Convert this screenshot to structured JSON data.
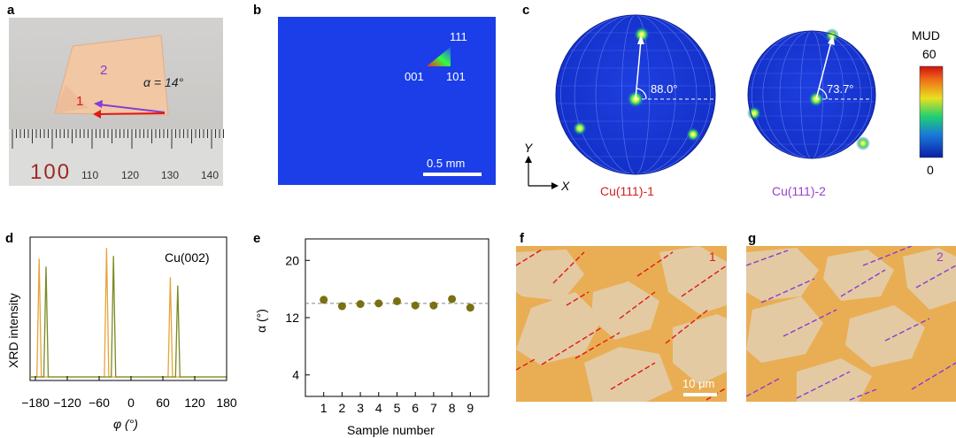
{
  "panels": {
    "a": {
      "letter": "a",
      "label1": "1",
      "label2": "2",
      "alpha_label": "α = 14°",
      "ruler_numbers": [
        "100",
        "110",
        "120",
        "130",
        "140"
      ]
    },
    "b": {
      "letter": "b",
      "ipf_labels": {
        "top": "111",
        "left": "001",
        "right": "101"
      },
      "scalebar": "0.5 mm"
    },
    "c": {
      "letter": "c",
      "poles": [
        {
          "name": "Cu(111)-1",
          "angle": "88.0°",
          "color": "#d42020"
        },
        {
          "name": "Cu(111)-2",
          "angle": "73.7°",
          "color": "#9b3fd0"
        }
      ],
      "axis_y": "Y",
      "axis_x": "X",
      "colorbar": {
        "title": "MUD",
        "max": "60",
        "min": "0"
      }
    },
    "d": {
      "letter": "d",
      "label": "Cu(002)",
      "ylabel": "XRD intensity",
      "xlabel": "φ (°)"
    },
    "e": {
      "letter": "e",
      "ylabel": "α (°)",
      "xlabel": "Sample number"
    },
    "f": {
      "letter": "f",
      "tag": "1",
      "scalebar": "10 μm"
    },
    "g": {
      "letter": "g",
      "tag": "2"
    }
  },
  "chart_data": [
    {
      "type": "line",
      "title": "Cu(002)",
      "xlabel": "φ (°)",
      "ylabel": "XRD intensity",
      "xlim": [
        -190,
        180
      ],
      "xticks": [
        -180,
        -120,
        -60,
        0,
        60,
        120,
        180
      ],
      "xtick_labels": [
        "−180",
        "−120",
        "−60",
        "0",
        "60",
        "120",
        "180"
      ],
      "series": [
        {
          "name": "Cu(111)-1",
          "color": "#e8a33a",
          "peaks": [
            -173,
            -46,
            74
          ],
          "heights": [
            0.88,
            0.96,
            0.74
          ]
        },
        {
          "name": "Cu(111)-2",
          "color": "#7a8a22",
          "peaks": [
            -160,
            -33,
            88
          ],
          "heights": [
            0.82,
            0.9,
            0.68
          ]
        }
      ]
    },
    {
      "type": "scatter",
      "xlabel": "Sample number",
      "ylabel": "α (°)",
      "xlim": [
        0,
        10
      ],
      "ylim": [
        1,
        23
      ],
      "yticks": [
        4,
        12,
        20
      ],
      "x": [
        1,
        2,
        3,
        4,
        5,
        6,
        7,
        8,
        9
      ],
      "y": [
        14.5,
        13.6,
        13.9,
        14.0,
        14.3,
        13.7,
        13.7,
        14.6,
        13.4
      ],
      "reference_line": 14,
      "marker_color": "#7a7010"
    }
  ]
}
